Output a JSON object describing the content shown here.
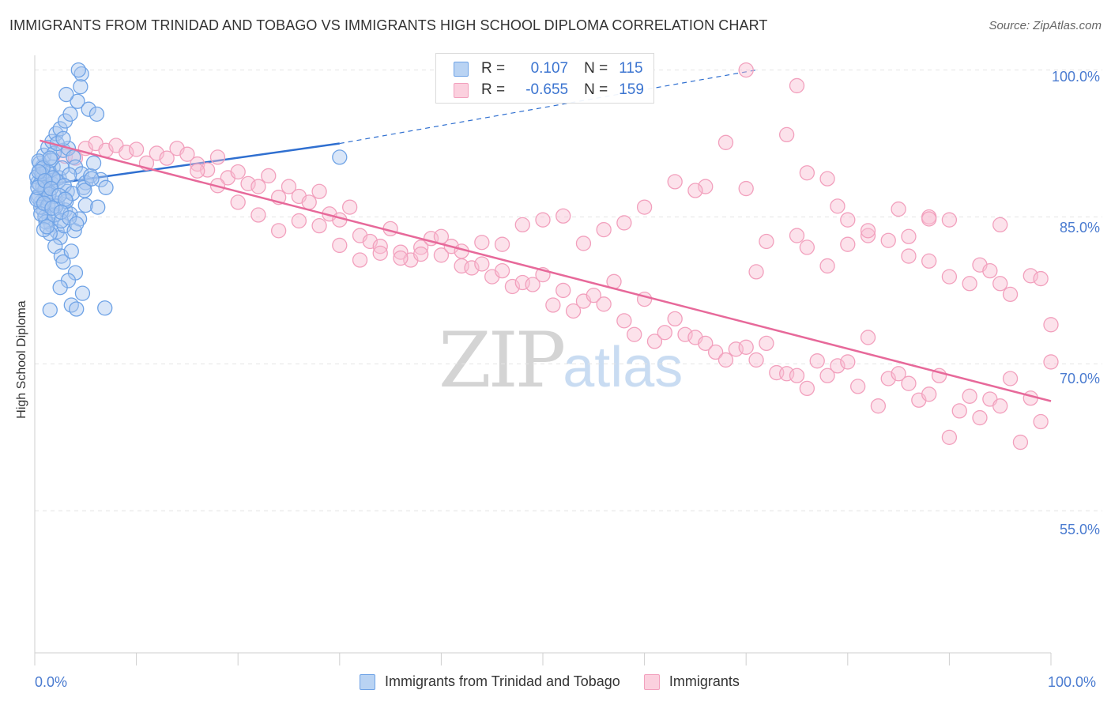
{
  "header": {
    "title": "IMMIGRANTS FROM TRINIDAD AND TOBAGO VS IMMIGRANTS HIGH SCHOOL DIPLOMA CORRELATION CHART",
    "source": "Source: ZipAtlas.com"
  },
  "watermark": {
    "zip": "ZIP",
    "atlas": "atlas"
  },
  "legend": {
    "rows": [
      {
        "r_label": "R =",
        "r_value": "0.107",
        "n_label": "N =",
        "n_value": "115",
        "color": "#6fa3e6"
      },
      {
        "r_label": "R =",
        "r_value": "-0.655",
        "n_label": "N =",
        "n_value": "159",
        "color": "#f2a0bd"
      }
    ]
  },
  "bottom_legend": {
    "items": [
      {
        "label": "Immigrants from Trinidad and Tobago",
        "color": "#6fa3e6"
      },
      {
        "label": "Immigrants",
        "color": "#f2a0bd"
      }
    ]
  },
  "chart_data": {
    "type": "scatter",
    "title": "IMMIGRANTS FROM TRINIDAD AND TOBAGO VS IMMIGRANTS HIGH SCHOOL DIPLOMA CORRELATION CHART",
    "xlabel": "",
    "ylabel": "High School Diploma",
    "xlim": [
      0,
      100
    ],
    "ylim": [
      40.5,
      101.5
    ],
    "x_tick_labels": [
      "0.0%",
      "100.0%"
    ],
    "y_ticks": [
      100,
      85,
      70,
      55
    ],
    "y_tick_labels": [
      "100.0%",
      "85.0%",
      "70.0%",
      "55.0%"
    ],
    "grid": true,
    "series": [
      {
        "name": "Immigrants from Trinidad and Tobago",
        "color": "#6fa3e6",
        "line_color": "#2f6fd0",
        "trend": {
          "x0": 0.5,
          "y0": 88.2,
          "x1": 30,
          "y1": 92.5,
          "dash_to_x": 71,
          "dash_to_y": 100
        },
        "points": [
          [
            0.3,
            88.5
          ],
          [
            0.5,
            89.8
          ],
          [
            0.8,
            90.2
          ],
          [
            1.0,
            87.5
          ],
          [
            1.2,
            88.0
          ],
          [
            0.6,
            86.5
          ],
          [
            0.9,
            85.6
          ],
          [
            1.5,
            89.5
          ],
          [
            1.8,
            90.1
          ],
          [
            2.0,
            88.8
          ],
          [
            0.4,
            87.2
          ],
          [
            0.7,
            88.9
          ],
          [
            1.1,
            86.9
          ],
          [
            1.4,
            85.0
          ],
          [
            1.6,
            84.2
          ],
          [
            2.2,
            83.5
          ],
          [
            2.5,
            82.9
          ],
          [
            0.2,
            89.1
          ],
          [
            0.5,
            90.5
          ],
          [
            0.9,
            91.3
          ],
          [
            1.3,
            92.1
          ],
          [
            1.7,
            92.7
          ],
          [
            2.1,
            93.5
          ],
          [
            2.5,
            94.0
          ],
          [
            3.0,
            94.8
          ],
          [
            3.5,
            95.5
          ],
          [
            4.2,
            96.8
          ],
          [
            4.5,
            98.3
          ],
          [
            4.6,
            99.6
          ],
          [
            4.3,
            100.0
          ],
          [
            3.1,
            97.5
          ],
          [
            5.3,
            96.0
          ],
          [
            6.1,
            95.5
          ],
          [
            1.9,
            91.5
          ],
          [
            2.8,
            91.8
          ],
          [
            3.3,
            92.0
          ],
          [
            3.8,
            91.1
          ],
          [
            4.0,
            90.1
          ],
          [
            4.6,
            89.4
          ],
          [
            5.0,
            88.5
          ],
          [
            5.5,
            89.2
          ],
          [
            6.5,
            88.8
          ],
          [
            7.0,
            88.0
          ],
          [
            1.0,
            85.0
          ],
          [
            1.5,
            83.3
          ],
          [
            2.0,
            82.0
          ],
          [
            2.6,
            81.0
          ],
          [
            2.8,
            80.4
          ],
          [
            3.6,
            81.5
          ],
          [
            4.0,
            79.3
          ],
          [
            3.3,
            78.5
          ],
          [
            2.5,
            77.8
          ],
          [
            4.7,
            77.2
          ],
          [
            3.6,
            76.0
          ],
          [
            4.1,
            75.6
          ],
          [
            6.9,
            75.7
          ],
          [
            1.5,
            75.5
          ],
          [
            2.2,
            86.4
          ],
          [
            3.0,
            85.7
          ],
          [
            3.5,
            85.3
          ],
          [
            4.4,
            84.8
          ],
          [
            5.0,
            86.2
          ],
          [
            6.2,
            86.0
          ],
          [
            2.0,
            87.1
          ],
          [
            1.2,
            89.7
          ],
          [
            0.8,
            88.1
          ],
          [
            0.3,
            87.0
          ],
          [
            0.6,
            86.0
          ],
          [
            1.7,
            88.4
          ],
          [
            2.4,
            89.0
          ],
          [
            3.2,
            87.6
          ],
          [
            4.8,
            88.0
          ],
          [
            1.1,
            84.5
          ],
          [
            0.9,
            83.7
          ],
          [
            2.9,
            84.1
          ],
          [
            3.9,
            83.6
          ],
          [
            0.4,
            90.7
          ],
          [
            1.6,
            90.8
          ],
          [
            2.7,
            90.0
          ],
          [
            5.8,
            90.5
          ],
          [
            0.2,
            86.8
          ],
          [
            1.0,
            87.8
          ],
          [
            2.3,
            88.6
          ],
          [
            3.4,
            89.3
          ],
          [
            30.0,
            91.1
          ],
          [
            0.5,
            88.3
          ],
          [
            1.3,
            86.2
          ],
          [
            1.9,
            85.2
          ],
          [
            2.6,
            84.6
          ],
          [
            3.1,
            86.6
          ],
          [
            0.7,
            89.4
          ],
          [
            1.4,
            87.3
          ],
          [
            2.1,
            86.1
          ],
          [
            0.3,
            88.0
          ],
          [
            1.8,
            89.0
          ],
          [
            2.9,
            88.2
          ],
          [
            3.7,
            87.4
          ],
          [
            0.6,
            85.3
          ],
          [
            1.2,
            84.0
          ],
          [
            4.9,
            87.7
          ],
          [
            5.6,
            88.9
          ],
          [
            0.8,
            90.0
          ],
          [
            1.5,
            91.0
          ],
          [
            2.2,
            92.5
          ],
          [
            2.8,
            93.0
          ],
          [
            0.4,
            89.6
          ],
          [
            1.0,
            88.7
          ],
          [
            1.6,
            87.9
          ],
          [
            2.4,
            87.2
          ],
          [
            3.0,
            86.8
          ],
          [
            0.9,
            86.4
          ],
          [
            1.7,
            85.9
          ],
          [
            2.6,
            85.5
          ],
          [
            3.4,
            84.9
          ],
          [
            4.1,
            84.3
          ]
        ]
      },
      {
        "name": "Immigrants",
        "color": "#f2a0bd",
        "line_color": "#e7699a",
        "trend": {
          "x0": 0.5,
          "y0": 92.8,
          "x1": 100,
          "y1": 66.2
        },
        "points": [
          [
            3,
            91.2
          ],
          [
            4,
            91.0
          ],
          [
            5,
            92.0
          ],
          [
            6,
            92.5
          ],
          [
            7,
            91.8
          ],
          [
            8,
            92.3
          ],
          [
            9,
            91.6
          ],
          [
            10,
            91.9
          ],
          [
            11,
            90.5
          ],
          [
            12,
            91.5
          ],
          [
            13,
            91.0
          ],
          [
            14,
            92.0
          ],
          [
            15,
            91.4
          ],
          [
            16,
            90.4
          ],
          [
            17,
            89.8
          ],
          [
            18,
            91.1
          ],
          [
            19,
            89.0
          ],
          [
            20,
            89.6
          ],
          [
            21,
            88.4
          ],
          [
            22,
            88.1
          ],
          [
            23,
            89.2
          ],
          [
            24,
            87.0
          ],
          [
            25,
            88.1
          ],
          [
            26,
            87.1
          ],
          [
            27,
            86.5
          ],
          [
            28,
            87.6
          ],
          [
            29,
            85.3
          ],
          [
            30,
            84.7
          ],
          [
            31,
            86.0
          ],
          [
            32,
            83.1
          ],
          [
            33,
            82.5
          ],
          [
            34,
            82.0
          ],
          [
            35,
            83.8
          ],
          [
            36,
            81.4
          ],
          [
            37,
            80.6
          ],
          [
            38,
            81.9
          ],
          [
            39,
            82.8
          ],
          [
            40,
            81.1
          ],
          [
            41,
            82.0
          ],
          [
            42,
            80.0
          ],
          [
            43,
            79.8
          ],
          [
            44,
            80.2
          ],
          [
            45,
            78.9
          ],
          [
            46,
            79.5
          ],
          [
            47,
            77.9
          ],
          [
            48,
            78.3
          ],
          [
            49,
            78.1
          ],
          [
            50,
            79.1
          ],
          [
            51,
            76.0
          ],
          [
            52,
            77.5
          ],
          [
            53,
            75.4
          ],
          [
            54,
            76.4
          ],
          [
            55,
            77.0
          ],
          [
            56,
            76.1
          ],
          [
            57,
            78.4
          ],
          [
            58,
            74.4
          ],
          [
            59,
            73.0
          ],
          [
            60,
            76.6
          ],
          [
            61,
            72.3
          ],
          [
            62,
            73.2
          ],
          [
            63,
            74.6
          ],
          [
            64,
            73.0
          ],
          [
            65,
            72.7
          ],
          [
            66,
            72.1
          ],
          [
            67,
            71.2
          ],
          [
            68,
            70.4
          ],
          [
            69,
            71.5
          ],
          [
            70,
            71.7
          ],
          [
            71,
            70.4
          ],
          [
            72,
            72.1
          ],
          [
            73,
            69.1
          ],
          [
            74,
            69.0
          ],
          [
            75,
            68.8
          ],
          [
            76,
            67.5
          ],
          [
            77,
            70.3
          ],
          [
            78,
            68.8
          ],
          [
            79,
            69.8
          ],
          [
            80,
            70.2
          ],
          [
            81,
            67.7
          ],
          [
            82,
            72.7
          ],
          [
            83,
            65.7
          ],
          [
            84,
            68.5
          ],
          [
            85,
            69.0
          ],
          [
            86,
            68.0
          ],
          [
            87,
            66.3
          ],
          [
            88,
            66.9
          ],
          [
            89,
            68.8
          ],
          [
            90,
            62.5
          ],
          [
            91,
            65.2
          ],
          [
            92,
            66.7
          ],
          [
            93,
            64.5
          ],
          [
            94,
            66.4
          ],
          [
            95,
            65.7
          ],
          [
            96,
            68.5
          ],
          [
            97,
            62.0
          ],
          [
            98,
            66.5
          ],
          [
            99,
            64.1
          ],
          [
            100,
            70.2
          ],
          [
            66,
            88.1
          ],
          [
            65,
            87.7
          ],
          [
            70,
            87.9
          ],
          [
            74,
            93.4
          ],
          [
            76,
            89.5
          ],
          [
            78,
            88.9
          ],
          [
            79,
            86.1
          ],
          [
            80,
            84.7
          ],
          [
            82,
            83.1
          ],
          [
            86,
            81.0
          ],
          [
            88,
            80.5
          ],
          [
            90,
            78.9
          ],
          [
            93,
            80.1
          ],
          [
            94,
            79.5
          ],
          [
            95,
            78.2
          ],
          [
            96,
            77.1
          ],
          [
            98,
            79.0
          ],
          [
            99,
            78.7
          ],
          [
            100,
            74.0
          ],
          [
            70,
            100.0
          ],
          [
            75,
            98.4
          ],
          [
            92,
            78.2
          ],
          [
            85,
            85.8
          ],
          [
            88,
            85.0
          ],
          [
            90,
            84.7
          ],
          [
            75,
            83.1
          ],
          [
            72,
            82.5
          ],
          [
            71,
            79.4
          ],
          [
            76,
            81.9
          ],
          [
            78,
            80.0
          ],
          [
            80,
            82.2
          ],
          [
            82,
            83.6
          ],
          [
            84,
            82.6
          ],
          [
            86,
            83.0
          ],
          [
            88,
            84.8
          ],
          [
            95,
            84.2
          ],
          [
            68,
            92.6
          ],
          [
            63,
            88.6
          ],
          [
            60,
            86.0
          ],
          [
            58,
            84.4
          ],
          [
            56,
            83.7
          ],
          [
            54,
            82.3
          ],
          [
            52,
            85.1
          ],
          [
            50,
            84.7
          ],
          [
            48,
            84.2
          ],
          [
            46,
            82.2
          ],
          [
            44,
            82.4
          ],
          [
            42,
            81.5
          ],
          [
            40,
            83.0
          ],
          [
            38,
            81.2
          ],
          [
            36,
            80.8
          ],
          [
            34,
            81.3
          ],
          [
            32,
            80.6
          ],
          [
            30,
            82.1
          ],
          [
            28,
            84.1
          ],
          [
            26,
            84.6
          ],
          [
            24,
            83.6
          ],
          [
            22,
            85.2
          ],
          [
            20,
            86.5
          ],
          [
            18,
            88.2
          ],
          [
            16,
            89.7
          ]
        ]
      }
    ]
  },
  "axis_labels": {
    "ylabel": "High School Diploma",
    "y_ticks": [
      "100.0%",
      "85.0%",
      "70.0%",
      "55.0%"
    ],
    "x_left": "0.0%",
    "x_right": "100.0%"
  }
}
